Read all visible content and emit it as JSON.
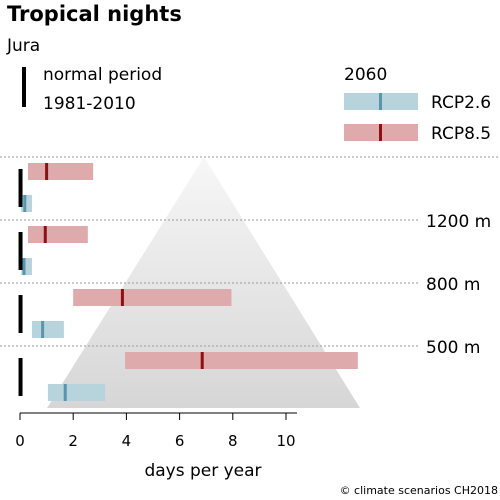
{
  "chart_data": {
    "type": "range-bar",
    "title": "Tropical nights",
    "subtitle": "Jura",
    "xlabel": "days per year",
    "x_ticks": [
      0,
      2,
      4,
      6,
      8,
      10
    ],
    "xlim": [
      0,
      13
    ],
    "reference_legend": [
      "normal period",
      "1981-2010"
    ],
    "scenario_year": "2060",
    "series": [
      {
        "name": "RCP2.6",
        "color": "#b7d3dc",
        "median_color": "#5a95ad"
      },
      {
        "name": "RCP8.5",
        "color": "#deaaab",
        "median_color": "#8b1113"
      }
    ],
    "elevations": [
      {
        "label": "1200 m",
        "normal": 0.02,
        "rcp26": {
          "low": 0.05,
          "median": 0.18,
          "high": 0.45
        },
        "rcp85": {
          "low": 0.3,
          "median": 1.0,
          "high": 2.75
        }
      },
      {
        "label": "800 m",
        "normal": 0.02,
        "rcp26": {
          "low": 0.05,
          "median": 0.15,
          "high": 0.45
        },
        "rcp85": {
          "low": 0.3,
          "median": 0.95,
          "high": 2.55
        }
      },
      {
        "label": "500 m",
        "normal": 0.02,
        "rcp26": {
          "low": 0.45,
          "median": 0.85,
          "high": 1.65
        },
        "rcp85": {
          "low": 2.0,
          "median": 3.85,
          "high": 7.95
        }
      },
      {
        "label": "",
        "normal": 0.02,
        "rcp26": {
          "low": 1.05,
          "median": 1.7,
          "high": 3.2
        },
        "rcp85": {
          "low": 3.95,
          "median": 6.85,
          "high": 12.7
        }
      }
    ]
  },
  "credit": "© climate scenarios CH2018"
}
